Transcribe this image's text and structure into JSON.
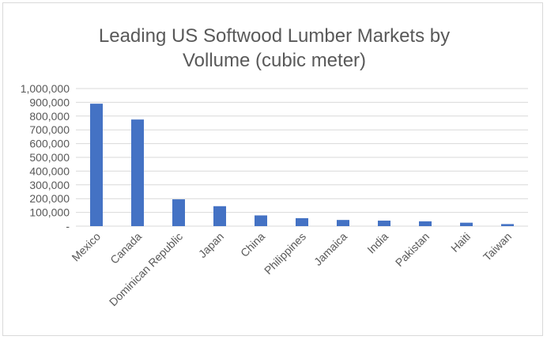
{
  "chart_data": {
    "type": "bar",
    "title_lines": [
      "Leading US Softwood Lumber Markets by",
      "Vollume (cubic meter)"
    ],
    "categories": [
      "Mexico",
      "Canada",
      "Dominican Republic",
      "Japan",
      "China",
      "Philippines",
      "Jamaica",
      "India",
      "Pakistan",
      "Haiti",
      "Taiwan"
    ],
    "values": [
      890000,
      775000,
      195000,
      145000,
      78000,
      58000,
      45000,
      40000,
      35000,
      25000,
      15000
    ],
    "ylim": [
      0,
      1000000
    ],
    "y_ticks": [
      0,
      100000,
      200000,
      300000,
      400000,
      500000,
      600000,
      700000,
      800000,
      900000,
      1000000
    ],
    "y_tick_labels": [
      "-",
      "100,000",
      "200,000",
      "300,000",
      "400,000",
      "500,000",
      "600,000",
      "700,000",
      "800,000",
      "900,000",
      "1,000,000"
    ],
    "bar_color": "#4472c4",
    "grid": true,
    "legend": "none"
  }
}
